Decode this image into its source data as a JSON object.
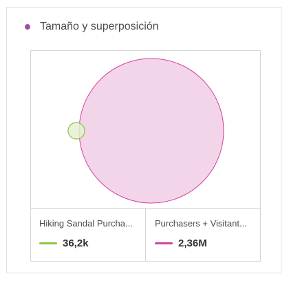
{
  "header": {
    "title": "Tamaño y superposición",
    "dot_color": "#a14fa6"
  },
  "segments": [
    {
      "label": "Hiking Sandal Purcha...",
      "value": "36,2k",
      "color": "#8cc63f",
      "fill": "#e4f1d2"
    },
    {
      "label": "Purchasers + Visitant...",
      "value": "2,36M",
      "color": "#d63f9b",
      "fill": "#f3d5ea"
    }
  ]
}
